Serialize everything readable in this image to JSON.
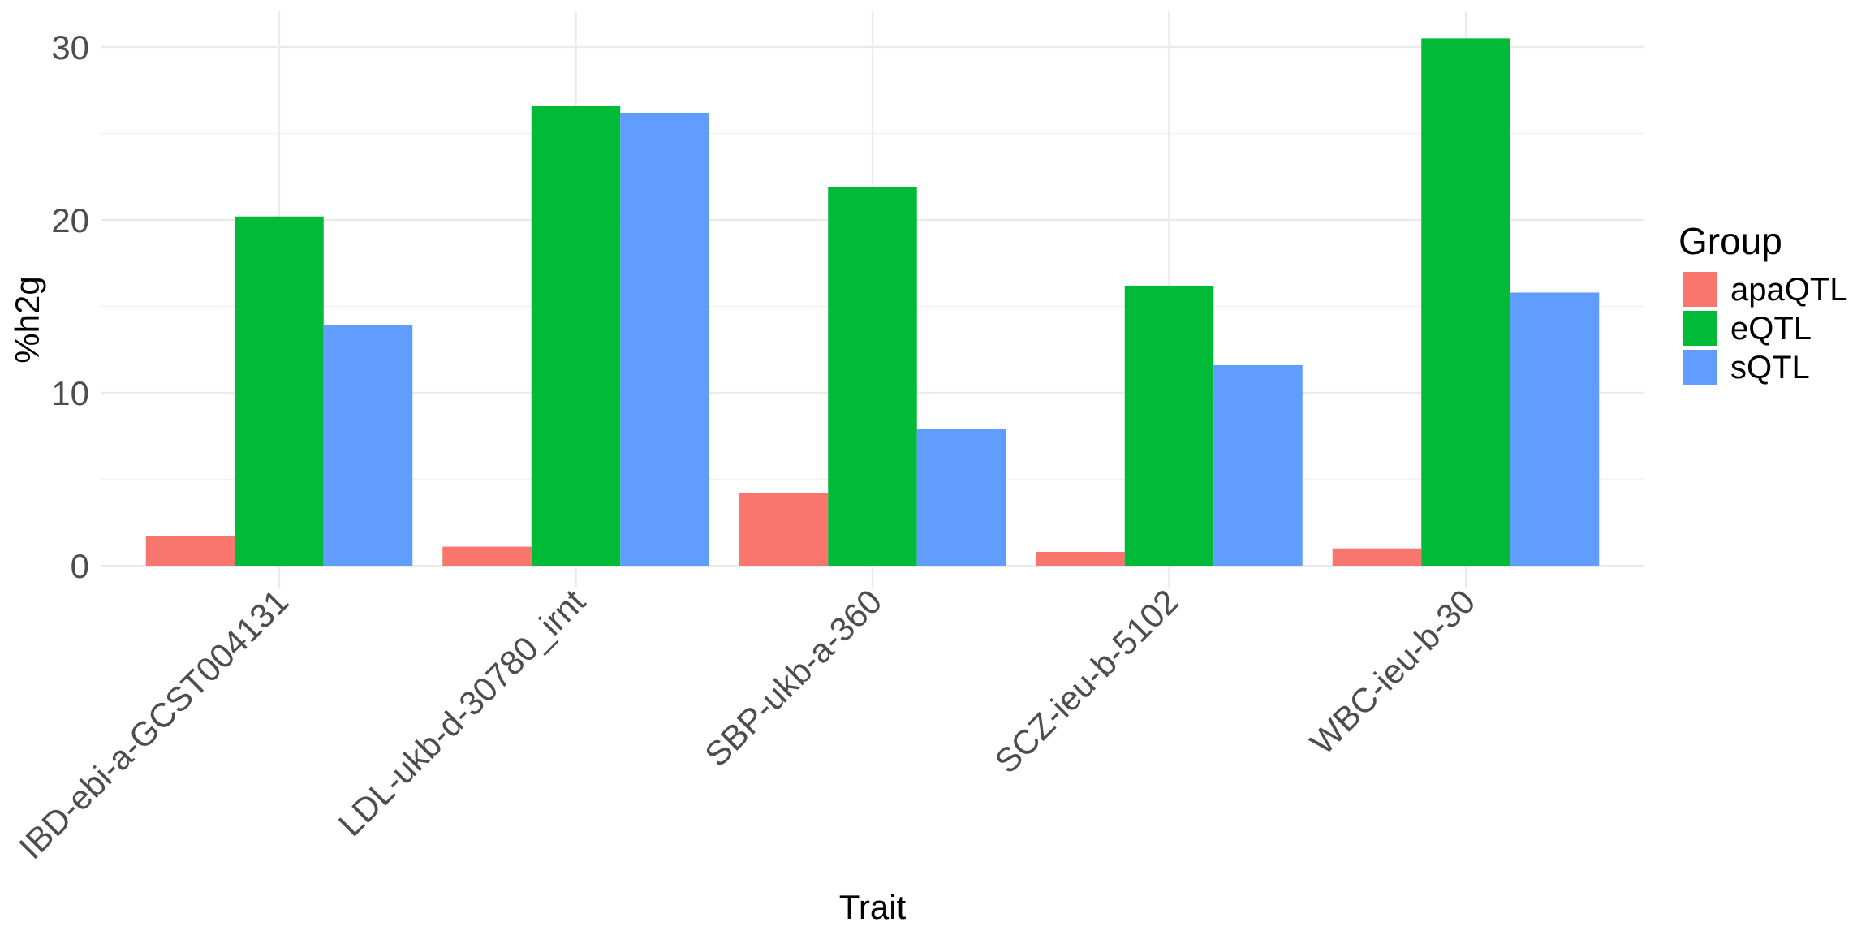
{
  "chart_data": {
    "type": "bar",
    "title": "",
    "xlabel": "Trait",
    "ylabel": "%h2g",
    "ylim": [
      0,
      32
    ],
    "yticks": [
      0,
      10,
      20,
      30
    ],
    "grid": true,
    "legend": {
      "title": "Group",
      "position": "right"
    },
    "categories": [
      "IBD-ebi-a-GCST004131",
      "LDL-ukb-d-30780_irnt",
      "SBP-ukb-a-360",
      "SCZ-ieu-b-5102",
      "WBC-ieu-b-30"
    ],
    "series": [
      {
        "name": "apaQTL",
        "color": "#F8766D",
        "values": [
          1.7,
          1.1,
          4.2,
          0.8,
          1.0
        ]
      },
      {
        "name": "eQTL",
        "color": "#00BA38",
        "values": [
          20.2,
          26.6,
          21.9,
          16.2,
          30.5
        ]
      },
      {
        "name": "sQTL",
        "color": "#619CFF",
        "values": [
          13.9,
          26.2,
          7.9,
          11.6,
          15.8
        ]
      }
    ]
  }
}
